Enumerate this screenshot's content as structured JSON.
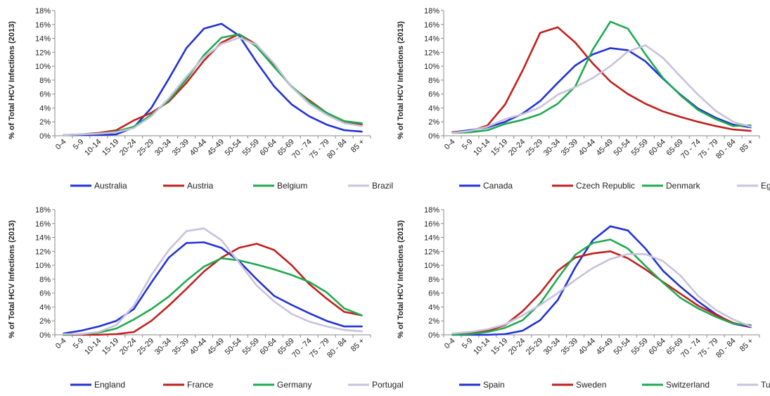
{
  "chart_data": [
    {
      "type": "line",
      "ylabel": "% of Total HCV Infections (2013)",
      "categories": [
        "0-4",
        "5-9",
        "10-14",
        "15-19",
        "20-24",
        "25-29",
        "30-34",
        "35-39",
        "40-44",
        "45-49",
        "50-54",
        "55-59",
        "60-64",
        "65-69",
        "70 - 74",
        "75 - 79",
        "80 - 84",
        "85 +"
      ],
      "yticks": [
        "0%",
        "2%",
        "4%",
        "6%",
        "8%",
        "10%",
        "12%",
        "14%",
        "16%",
        "18%"
      ],
      "ylim": [
        0,
        18
      ],
      "series": [
        {
          "name": "Australia",
          "color": "#2232d6",
          "values": [
            0.1,
            0.1,
            0.1,
            0.2,
            1.2,
            4.0,
            8.2,
            12.6,
            15.4,
            16.1,
            14.4,
            10.6,
            7.1,
            4.5,
            2.8,
            1.6,
            0.8,
            0.6
          ]
        },
        {
          "name": "Austria",
          "color": "#c0211d",
          "values": [
            0.1,
            0.2,
            0.4,
            0.8,
            2.2,
            3.3,
            4.9,
            7.6,
            10.8,
            13.4,
            14.6,
            13.1,
            10.1,
            7.0,
            5.1,
            3.3,
            1.9,
            1.6
          ]
        },
        {
          "name": "Belgium",
          "color": "#1faa50",
          "values": [
            0.1,
            0.2,
            0.3,
            0.6,
            1.3,
            3.0,
            5.1,
            8.1,
            11.6,
            14.1,
            14.6,
            12.8,
            9.9,
            7.1,
            4.9,
            3.3,
            2.1,
            1.8
          ]
        },
        {
          "name": "Brazil",
          "color": "#c8c2dc",
          "values": [
            0.1,
            0.2,
            0.3,
            0.5,
            1.1,
            2.8,
            5.4,
            8.5,
            11.3,
            13.2,
            14.1,
            13.1,
            10.4,
            7.0,
            4.6,
            3.0,
            1.8,
            1.4
          ]
        }
      ]
    },
    {
      "type": "line",
      "ylabel": "% of Total HCV Infections (2013)",
      "categories": [
        "0-4",
        "5-9",
        "10-14",
        "15-19",
        "20-24",
        "25-29",
        "30-34",
        "35-39",
        "40-44",
        "45-49",
        "50-54",
        "55-59",
        "60-64",
        "65-69",
        "70 - 74",
        "75 - 79",
        "80 - 84",
        "85 +"
      ],
      "yticks": [
        "0%",
        "2%",
        "4%",
        "6%",
        "8%",
        "10%",
        "12%",
        "14%",
        "16%",
        "18%"
      ],
      "ylim": [
        0,
        18
      ],
      "series": [
        {
          "name": "Canada",
          "color": "#2232d6",
          "values": [
            0.5,
            0.8,
            1.2,
            2.0,
            3.2,
            5.0,
            7.6,
            10.1,
            11.7,
            12.6,
            12.3,
            10.7,
            8.2,
            5.9,
            3.9,
            2.6,
            1.6,
            1.2
          ]
        },
        {
          "name": "Czech Republic",
          "color": "#c0211d",
          "values": [
            0.5,
            0.6,
            1.5,
            4.5,
            9.4,
            14.8,
            15.6,
            13.4,
            10.4,
            7.8,
            6.0,
            4.6,
            3.5,
            2.7,
            2.0,
            1.4,
            0.9,
            0.7
          ]
        },
        {
          "name": "Denmark",
          "color": "#1faa50",
          "values": [
            0.4,
            0.5,
            0.8,
            1.7,
            2.3,
            3.1,
            4.6,
            7.1,
            12.4,
            16.4,
            15.4,
            11.7,
            8.3,
            5.8,
            3.7,
            2.4,
            1.4,
            1.5
          ]
        },
        {
          "name": "Egypt",
          "color": "#c8c2dc",
          "values": [
            0.4,
            0.7,
            1.3,
            2.4,
            3.1,
            4.1,
            5.9,
            7.0,
            8.3,
            10.0,
            12.1,
            13.0,
            11.2,
            8.5,
            5.9,
            3.6,
            2.0,
            1.3
          ]
        }
      ]
    },
    {
      "type": "line",
      "ylabel": "% of Total HCV Infections (2013)",
      "categories": [
        "0-4",
        "5-9",
        "10-14",
        "15-19",
        "20-24",
        "25-29",
        "30-34",
        "35-39",
        "40-44",
        "45-49",
        "50-54",
        "55-59",
        "60-64",
        "65-69",
        "70 - 74",
        "75 - 79",
        "80 - 84",
        "85 +"
      ],
      "yticks": [
        "0%",
        "2%",
        "4%",
        "6%",
        "8%",
        "10%",
        "12%",
        "14%",
        "16%",
        "18%"
      ],
      "ylim": [
        0,
        18
      ],
      "series": [
        {
          "name": "England",
          "color": "#2232d6",
          "values": [
            0.2,
            0.6,
            1.2,
            2.0,
            3.7,
            7.5,
            11.1,
            13.2,
            13.3,
            12.5,
            10.6,
            8.0,
            5.6,
            4.3,
            3.1,
            2.0,
            1.2,
            1.2
          ]
        },
        {
          "name": "France",
          "color": "#c0211d",
          "values": [
            0.0,
            0.0,
            0.0,
            0.1,
            0.4,
            2.0,
            4.2,
            6.6,
            9.1,
            11.1,
            12.5,
            13.1,
            12.2,
            10.0,
            7.3,
            5.2,
            3.3,
            2.8
          ]
        },
        {
          "name": "Germany",
          "color": "#1faa50",
          "values": [
            0.0,
            0.1,
            0.3,
            0.9,
            2.2,
            3.7,
            5.5,
            7.8,
            9.8,
            11.0,
            10.7,
            10.1,
            9.4,
            8.6,
            7.6,
            6.1,
            3.8,
            2.8
          ]
        },
        {
          "name": "Portugal",
          "color": "#c8c2dc",
          "values": [
            0.1,
            0.1,
            0.4,
            1.4,
            4.2,
            8.6,
            12.2,
            14.9,
            15.3,
            13.6,
            10.4,
            7.1,
            4.8,
            3.0,
            1.9,
            1.2,
            0.7,
            0.5
          ]
        }
      ]
    },
    {
      "type": "line",
      "ylabel": "% of Total HCV Infections (2013)",
      "categories": [
        "0-4",
        "5-9",
        "10-14",
        "15-19",
        "20-24",
        "25-29",
        "30-34",
        "35-39",
        "40-44",
        "45-49",
        "50-54",
        "55-59",
        "60-64",
        "65-69",
        "70 - 74",
        "75 - 79",
        "80 - 84",
        "85 +"
      ],
      "yticks": [
        "0%",
        "2%",
        "4%",
        "6%",
        "8%",
        "10%",
        "12%",
        "14%",
        "16%",
        "18%"
      ],
      "ylim": [
        0,
        18
      ],
      "series": [
        {
          "name": "Spain",
          "color": "#2232d6",
          "values": [
            0.0,
            0.0,
            0.0,
            0.1,
            0.6,
            2.1,
            5.0,
            9.7,
            13.6,
            15.6,
            15.0,
            12.4,
            9.2,
            6.9,
            4.8,
            3.0,
            1.6,
            1.1
          ]
        },
        {
          "name": "Sweden",
          "color": "#c0211d",
          "values": [
            0.1,
            0.2,
            0.6,
            1.4,
            3.4,
            6.0,
            9.2,
            11.1,
            11.7,
            12.0,
            11.0,
            9.4,
            7.6,
            5.9,
            4.2,
            2.9,
            1.7,
            1.2
          ]
        },
        {
          "name": "Switzerland",
          "color": "#1faa50",
          "values": [
            0.0,
            0.1,
            0.4,
            1.0,
            2.1,
            4.5,
            8.1,
            11.5,
            13.2,
            13.7,
            12.4,
            9.9,
            7.5,
            5.3,
            3.8,
            2.6,
            1.6,
            1.4
          ]
        },
        {
          "name": "Turkey",
          "color": "#c8c2dc",
          "values": [
            0.2,
            0.4,
            0.8,
            1.5,
            2.8,
            4.3,
            6.0,
            7.9,
            9.6,
            10.9,
            11.6,
            11.6,
            10.6,
            8.5,
            5.6,
            3.6,
            2.2,
            1.2
          ]
        }
      ]
    }
  ]
}
